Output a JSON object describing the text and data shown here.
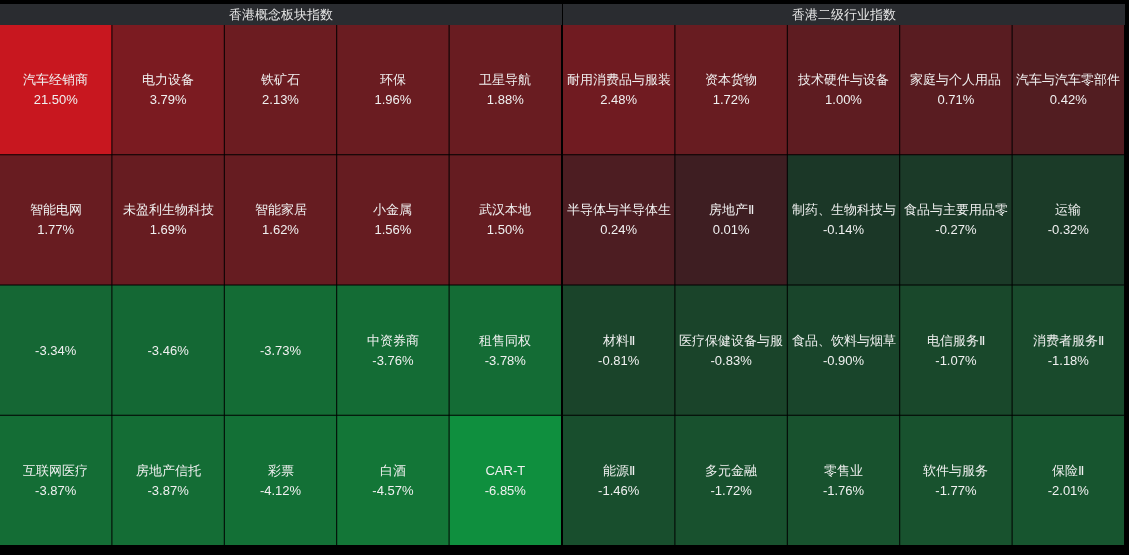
{
  "chart_data": [
    {
      "type": "other",
      "title": "香港概念板块指数",
      "categories": [
        "汽车经销商",
        "电力设备",
        "铁矿石",
        "环保",
        "卫星导航",
        "智能电网",
        "未盈利生物科技",
        "智能家居",
        "小金属",
        "武汉本地",
        null,
        null,
        null,
        "中资券商",
        "租售同权",
        "互联网医疗",
        "房地产信托",
        "彩票",
        "白酒",
        "CAR-T"
      ],
      "values": [
        21.5,
        3.79,
        2.13,
        1.96,
        1.88,
        1.77,
        1.69,
        1.62,
        1.56,
        1.5,
        -3.34,
        -3.46,
        -3.73,
        -3.76,
        -3.78,
        -3.87,
        -3.87,
        -4.12,
        -4.57,
        -6.85
      ],
      "value_labels": [
        "21.50%",
        "3.79%",
        "2.13%",
        "1.96%",
        "1.88%",
        "1.77%",
        "1.69%",
        "1.62%",
        "1.56%",
        "1.50%",
        "-3.34%",
        "-3.46%",
        "-3.73%",
        "-3.76%",
        "-3.78%",
        "-3.87%",
        "-3.87%",
        "-4.12%",
        "-4.57%",
        "-6.85%"
      ]
    },
    {
      "type": "other",
      "title": "香港二级行业指数",
      "categories": [
        "耐用消费品与服装",
        "资本货物",
        "技术硬件与设备",
        "家庭与个人用品",
        "汽车与汽车零部件",
        "半导体与半导体生",
        "房地产Ⅱ",
        "制药、生物科技与",
        "食品与主要用品零",
        "运输",
        "材料Ⅱ",
        "医疗保健设备与服",
        "食品、饮料与烟草",
        "电信服务Ⅱ",
        "消费者服务Ⅱ",
        "能源Ⅱ",
        "多元金融",
        "零售业",
        "软件与服务",
        "保险Ⅱ"
      ],
      "values": [
        2.48,
        1.72,
        1.0,
        0.71,
        0.42,
        0.24,
        0.01,
        -0.14,
        -0.27,
        -0.32,
        -0.81,
        -0.83,
        -0.9,
        -1.07,
        -1.18,
        -1.46,
        -1.72,
        -1.76,
        -1.77,
        -2.01
      ],
      "value_labels": [
        "2.48%",
        "1.72%",
        "1.00%",
        "0.71%",
        "0.42%",
        "0.24%",
        "0.01%",
        "-0.14%",
        "-0.27%",
        "-0.32%",
        "-0.81%",
        "-0.83%",
        "-0.90%",
        "-1.07%",
        "-1.18%",
        "-1.46%",
        "-1.72%",
        "-1.76%",
        "-1.77%",
        "-2.01%"
      ]
    }
  ]
}
